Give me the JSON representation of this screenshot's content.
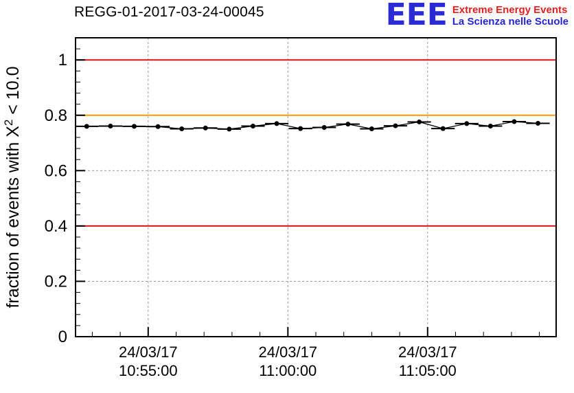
{
  "header": {
    "title": "REGG-01-2017-03-24-00045",
    "logo": {
      "acronym": "EEE",
      "line1": "Extreme Energy Events",
      "line2": "La Scienza nelle Scuole",
      "acronym_color": "#2b2bd4",
      "line1_color": "#e02020",
      "line2_color": "#2525cc"
    }
  },
  "chart_data": {
    "type": "scatter",
    "title": "REGG-01-2017-03-24-00045",
    "xlabel": "",
    "ylabel": "fraction of events with X² < 10.0",
    "x_unit": "minutes since 24/03/17 10:55:00",
    "xlim": [
      -2.6,
      14.6
    ],
    "ylim": [
      0,
      1.08
    ],
    "xticks": [
      0,
      5,
      10
    ],
    "xtick_labels": [
      [
        "24/03/17",
        "10:55:00"
      ],
      [
        "24/03/17",
        "11:00:00"
      ],
      [
        "24/03/17",
        "11:05:00"
      ]
    ],
    "x_minor_step": 1,
    "yticks": [
      0,
      0.2,
      0.4,
      0.6,
      0.8,
      1
    ],
    "ytick_labels": [
      "0",
      "0.2",
      "0.4",
      "0.6",
      "0.8",
      "1"
    ],
    "y_minor_step": 0.04,
    "grid": true,
    "grid_color": "#999999",
    "legend": "none",
    "reference_lines": [
      {
        "y": 1.0,
        "color": "#dd1111",
        "name": "upper-limit-line"
      },
      {
        "y": 0.8,
        "color": "#ff9900",
        "name": "warning-line"
      },
      {
        "y": 0.4,
        "color": "#dd1111",
        "name": "lower-limit-line"
      }
    ],
    "series": [
      {
        "name": "chi2-fraction",
        "marker_color": "#000000",
        "x_half_width": 0.42,
        "points": [
          {
            "x": -2.2,
            "y": 0.76
          },
          {
            "x": -1.35,
            "y": 0.761
          },
          {
            "x": -0.5,
            "y": 0.76
          },
          {
            "x": 0.35,
            "y": 0.759
          },
          {
            "x": 1.2,
            "y": 0.751
          },
          {
            "x": 2.05,
            "y": 0.754
          },
          {
            "x": 2.9,
            "y": 0.75
          },
          {
            "x": 3.75,
            "y": 0.761
          },
          {
            "x": 4.6,
            "y": 0.77
          },
          {
            "x": 5.45,
            "y": 0.752
          },
          {
            "x": 6.3,
            "y": 0.756
          },
          {
            "x": 7.15,
            "y": 0.768
          },
          {
            "x": 8.0,
            "y": 0.751
          },
          {
            "x": 8.85,
            "y": 0.762
          },
          {
            "x": 9.7,
            "y": 0.776
          },
          {
            "x": 10.55,
            "y": 0.752
          },
          {
            "x": 11.4,
            "y": 0.77
          },
          {
            "x": 12.25,
            "y": 0.761
          },
          {
            "x": 13.1,
            "y": 0.777
          },
          {
            "x": 13.95,
            "y": 0.771
          }
        ]
      }
    ]
  }
}
